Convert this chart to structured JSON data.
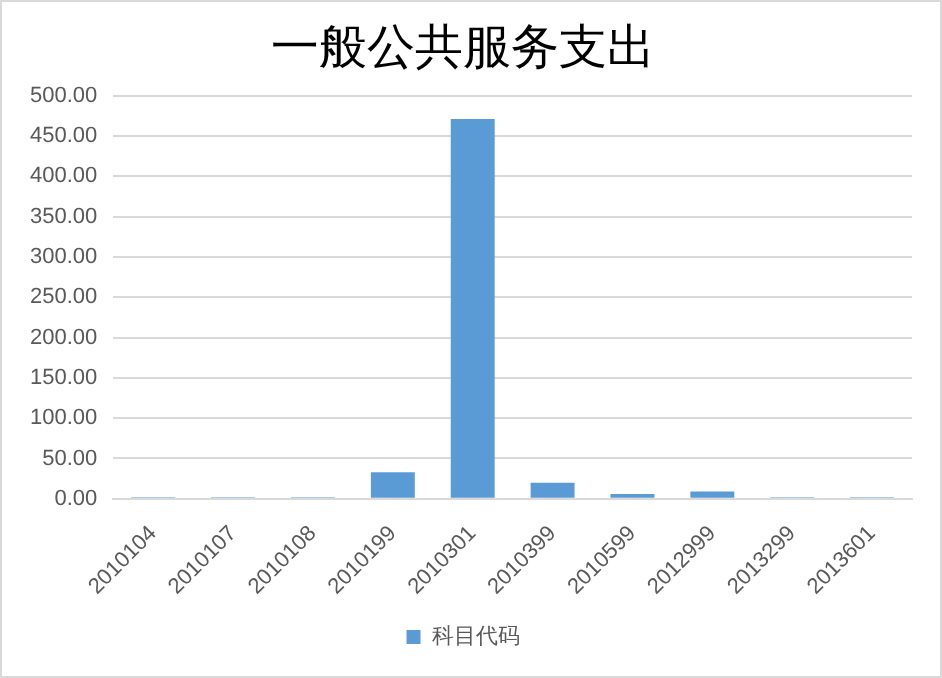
{
  "chart_data": {
    "type": "bar",
    "title": "一般公共服务支出",
    "categories": [
      "2010104",
      "2010107",
      "2010108",
      "2010199",
      "2010301",
      "2010399",
      "2010599",
      "2012999",
      "2013299",
      "2013601"
    ],
    "series": [
      {
        "name": "科目代码",
        "color": "#5b9bd5",
        "values": [
          2,
          2,
          2,
          33,
          471,
          20,
          6,
          9,
          2,
          2
        ]
      }
    ],
    "ylim": [
      0,
      500
    ],
    "yticks": [
      {
        "value": 0,
        "label": "0.00"
      },
      {
        "value": 50,
        "label": "50.00"
      },
      {
        "value": 100,
        "label": "100.00"
      },
      {
        "value": 150,
        "label": "150.00"
      },
      {
        "value": 200,
        "label": "200.00"
      },
      {
        "value": 250,
        "label": "250.00"
      },
      {
        "value": 300,
        "label": "300.00"
      },
      {
        "value": 350,
        "label": "350.00"
      },
      {
        "value": 400,
        "label": "400.00"
      },
      {
        "value": 450,
        "label": "450.00"
      },
      {
        "value": 500,
        "label": "500.00"
      }
    ],
    "grid": "y",
    "legend": "bottom"
  }
}
